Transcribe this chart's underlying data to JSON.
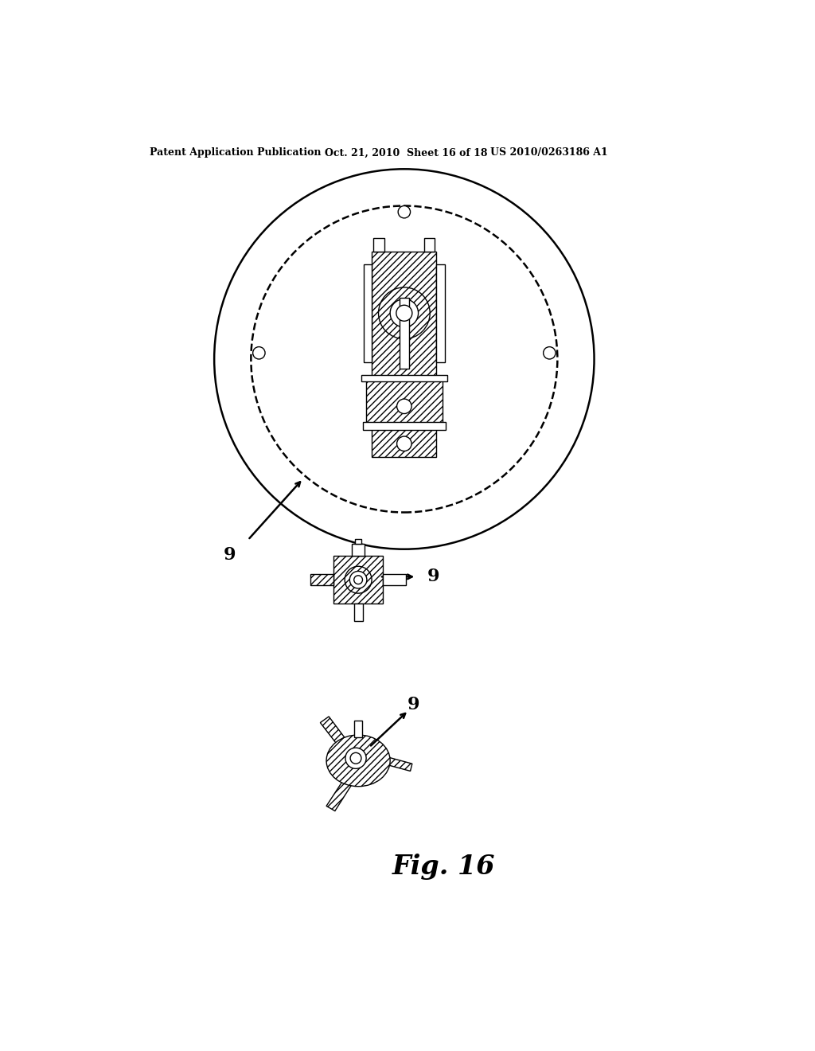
{
  "bg_color": "#ffffff",
  "line_color": "#000000",
  "header_left": "Patent Application Publication",
  "header_mid": "Oct. 21, 2010  Sheet 16 of 18",
  "header_right": "US 2010/0263186 A1",
  "fig_label": "Fig. 16",
  "label_9": "9"
}
